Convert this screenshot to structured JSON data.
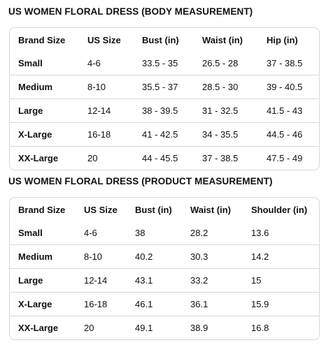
{
  "body_table": {
    "title": "US WOMEN FLORAL DRESS (BODY MEASUREMENT)",
    "headers": [
      "Brand Size",
      "US Size",
      "Bust (in)",
      "Waist (in)",
      "Hip (in)"
    ],
    "rows": [
      [
        "Small",
        "4-6",
        "33.5 - 35",
        "26.5 - 28",
        "37 - 38.5"
      ],
      [
        "Medium",
        "8-10",
        "35.5 - 37",
        "28.5 - 30",
        "39 - 40.5"
      ],
      [
        "Large",
        "12-14",
        "38 - 39.5",
        "31 - 32.5",
        "41.5 - 43"
      ],
      [
        "X-Large",
        "16-18",
        "41 - 42.5",
        "34 - 35.5",
        "44.5 - 46"
      ],
      [
        "XX-Large",
        "20",
        "44 - 45.5",
        "37 - 38.5",
        "47.5 - 49"
      ]
    ]
  },
  "product_table": {
    "title": "US WOMEN FLORAL DRESS (PRODUCT MEASUREMENT)",
    "headers": [
      "Brand Size",
      "US Size",
      "Bust (in)",
      "Waist (in)",
      "Shoulder (in)"
    ],
    "rows": [
      [
        "Small",
        "4-6",
        "38",
        "28.2",
        "13.6"
      ],
      [
        "Medium",
        "8-10",
        "40.2",
        "30.3",
        "14.2"
      ],
      [
        "Large",
        "12-14",
        "43.1",
        "33.2",
        "15"
      ],
      [
        "X-Large",
        "16-18",
        "46.1",
        "36.1",
        "15.9"
      ],
      [
        "XX-Large",
        "20",
        "49.1",
        "38.9",
        "16.8"
      ]
    ]
  }
}
